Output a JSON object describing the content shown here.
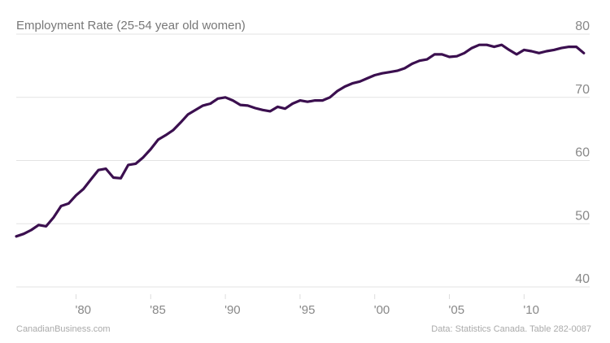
{
  "chart_data": {
    "type": "line",
    "title": "Employment Rate (25-54 year old women)",
    "xlabel": "",
    "ylabel": "",
    "xlim": [
      1976,
      2014.5
    ],
    "ylim": [
      40,
      80
    ],
    "grid": true,
    "y_ticks": [
      {
        "value": 80,
        "label": "80"
      },
      {
        "value": 70,
        "label": "70"
      },
      {
        "value": 60,
        "label": "60"
      },
      {
        "value": 50,
        "label": "50"
      },
      {
        "value": 40,
        "label": "40"
      }
    ],
    "x_ticks": [
      {
        "value": 1980,
        "label": "'80"
      },
      {
        "value": 1985,
        "label": "'85"
      },
      {
        "value": 1990,
        "label": "'90"
      },
      {
        "value": 1995,
        "label": "'95"
      },
      {
        "value": 2000,
        "label": "'00"
      },
      {
        "value": 2005,
        "label": "'05"
      },
      {
        "value": 2010,
        "label": "'10"
      }
    ],
    "line_color": "#3b0f4f",
    "series": [
      {
        "x": [
          1976.0,
          1976.5,
          1977.0,
          1977.5,
          1978.0,
          1978.5,
          1979.0,
          1979.5,
          1980.0,
          1980.5,
          1981.0,
          1981.5,
          1982.0,
          1982.5,
          1983.0,
          1983.5,
          1984.0,
          1984.5,
          1985.0,
          1985.5,
          1986.0,
          1986.5,
          1987.0,
          1987.5,
          1988.0,
          1988.5,
          1989.0,
          1989.5,
          1990.0,
          1990.5,
          1991.0,
          1991.5,
          1992.0,
          1992.5,
          1993.0,
          1993.5,
          1994.0,
          1994.5,
          1995.0,
          1995.5,
          1996.0,
          1996.5,
          1997.0,
          1997.5,
          1998.0,
          1998.5,
          1999.0,
          1999.5,
          2000.0,
          2000.5,
          2001.0,
          2001.5,
          2002.0,
          2002.5,
          2003.0,
          2003.5,
          2004.0,
          2004.5,
          2005.0,
          2005.5,
          2006.0,
          2006.5,
          2007.0,
          2007.5,
          2008.0,
          2008.5,
          2009.0,
          2009.5,
          2010.0,
          2010.5,
          2011.0,
          2011.5,
          2012.0,
          2012.5,
          2013.0,
          2013.5,
          2014.0
        ],
        "y": [
          48.0,
          48.4,
          49.0,
          49.8,
          49.6,
          51.0,
          52.8,
          53.2,
          54.5,
          55.5,
          57.0,
          58.5,
          58.7,
          57.3,
          57.2,
          59.3,
          59.5,
          60.5,
          61.8,
          63.3,
          64.0,
          64.8,
          66.0,
          67.3,
          68.0,
          68.7,
          69.0,
          69.8,
          70.0,
          69.5,
          68.8,
          68.7,
          68.3,
          68.0,
          67.8,
          68.5,
          68.2,
          69.0,
          69.5,
          69.3,
          69.5,
          69.5,
          70.0,
          71.0,
          71.7,
          72.2,
          72.5,
          73.0,
          73.5,
          73.8,
          74.0,
          74.2,
          74.6,
          75.3,
          75.8,
          76.0,
          76.8,
          76.8,
          76.4,
          76.5,
          77.0,
          77.8,
          78.3,
          78.3,
          78.0,
          78.3,
          77.5,
          76.8,
          77.5,
          77.3,
          77.0,
          77.3,
          77.5,
          77.8,
          78.0,
          78.0,
          77.0
        ]
      }
    ]
  },
  "footer": {
    "source_left": "CanadianBusiness.com",
    "source_right": "Data: Statistics Canada. Table 282-0087"
  }
}
